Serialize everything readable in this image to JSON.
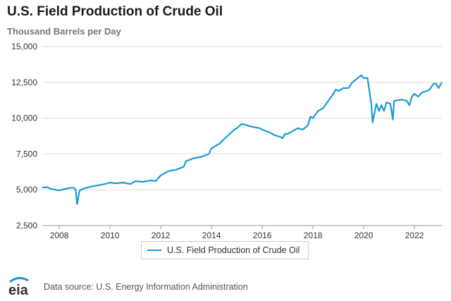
{
  "chart_data": {
    "type": "line",
    "title": "U.S. Field Production of Crude Oil",
    "subtitle": "Thousand Barrels per Day",
    "ylim": [
      2500,
      15000
    ],
    "yticks": [
      2500,
      5000,
      7500,
      10000,
      12500,
      15000
    ],
    "ytick_labels": [
      "2,500",
      "5,000",
      "7,500",
      "10,000",
      "12,500",
      "15,000"
    ],
    "xlim": [
      2007.33,
      2023.08
    ],
    "xticks": [
      2008,
      2010,
      2012,
      2014,
      2016,
      2018,
      2020,
      2022
    ],
    "xtick_labels": [
      "2008",
      "2010",
      "2012",
      "2014",
      "2016",
      "2018",
      "2020",
      "2022"
    ],
    "grid": "horizontal",
    "legend_position": "bottom-center",
    "series": [
      {
        "name": "U.S. Field Production of Crude Oil",
        "color": "#1a9ad6",
        "points": [
          [
            2007.33,
            5150
          ],
          [
            2007.5,
            5180
          ],
          [
            2007.7,
            5050
          ],
          [
            2008.0,
            4950
          ],
          [
            2008.2,
            5050
          ],
          [
            2008.5,
            5150
          ],
          [
            2008.6,
            5120
          ],
          [
            2008.65,
            4950
          ],
          [
            2008.7,
            4000
          ],
          [
            2008.8,
            4950
          ],
          [
            2009.0,
            5100
          ],
          [
            2009.2,
            5200
          ],
          [
            2009.5,
            5300
          ],
          [
            2009.8,
            5400
          ],
          [
            2010.0,
            5500
          ],
          [
            2010.2,
            5450
          ],
          [
            2010.5,
            5500
          ],
          [
            2010.8,
            5400
          ],
          [
            2011.0,
            5600
          ],
          [
            2011.3,
            5550
          ],
          [
            2011.6,
            5650
          ],
          [
            2011.8,
            5600
          ],
          [
            2012.0,
            6000
          ],
          [
            2012.3,
            6300
          ],
          [
            2012.6,
            6400
          ],
          [
            2012.9,
            6600
          ],
          [
            2013.0,
            7000
          ],
          [
            2013.3,
            7200
          ],
          [
            2013.6,
            7300
          ],
          [
            2013.9,
            7500
          ],
          [
            2014.0,
            7900
          ],
          [
            2014.3,
            8200
          ],
          [
            2014.6,
            8700
          ],
          [
            2014.9,
            9200
          ],
          [
            2015.0,
            9300
          ],
          [
            2015.2,
            9600
          ],
          [
            2015.4,
            9500
          ],
          [
            2015.6,
            9400
          ],
          [
            2015.9,
            9300
          ],
          [
            2016.0,
            9200
          ],
          [
            2016.3,
            9000
          ],
          [
            2016.5,
            8800
          ],
          [
            2016.7,
            8700
          ],
          [
            2016.8,
            8600
          ],
          [
            2016.9,
            8900
          ],
          [
            2017.0,
            8900
          ],
          [
            2017.2,
            9100
          ],
          [
            2017.4,
            9300
          ],
          [
            2017.6,
            9200
          ],
          [
            2017.8,
            9500
          ],
          [
            2017.9,
            10100
          ],
          [
            2018.0,
            10000
          ],
          [
            2018.2,
            10500
          ],
          [
            2018.4,
            10700
          ],
          [
            2018.6,
            11200
          ],
          [
            2018.8,
            11700
          ],
          [
            2018.9,
            12000
          ],
          [
            2019.0,
            11900
          ],
          [
            2019.2,
            12100
          ],
          [
            2019.4,
            12100
          ],
          [
            2019.55,
            12500
          ],
          [
            2019.7,
            12700
          ],
          [
            2019.9,
            13000
          ],
          [
            2020.0,
            12800
          ],
          [
            2020.15,
            12800
          ],
          [
            2020.3,
            11000
          ],
          [
            2020.35,
            9700
          ],
          [
            2020.5,
            11000
          ],
          [
            2020.6,
            10500
          ],
          [
            2020.7,
            10900
          ],
          [
            2020.8,
            10500
          ],
          [
            2020.9,
            11100
          ],
          [
            2021.05,
            11000
          ],
          [
            2021.15,
            9900
          ],
          [
            2021.2,
            11200
          ],
          [
            2021.5,
            11300
          ],
          [
            2021.7,
            11200
          ],
          [
            2021.8,
            10900
          ],
          [
            2021.9,
            11500
          ],
          [
            2022.0,
            11700
          ],
          [
            2022.15,
            11500
          ],
          [
            2022.3,
            11800
          ],
          [
            2022.5,
            11900
          ],
          [
            2022.6,
            12000
          ],
          [
            2022.75,
            12400
          ],
          [
            2022.85,
            12400
          ],
          [
            2022.95,
            12100
          ],
          [
            2023.08,
            12500
          ]
        ]
      }
    ]
  },
  "legend": {
    "label": "U.S. Field Production of Crude Oil"
  },
  "footer": {
    "logo_text": "eia",
    "source": "Data source: U.S. Energy Information Administration"
  }
}
